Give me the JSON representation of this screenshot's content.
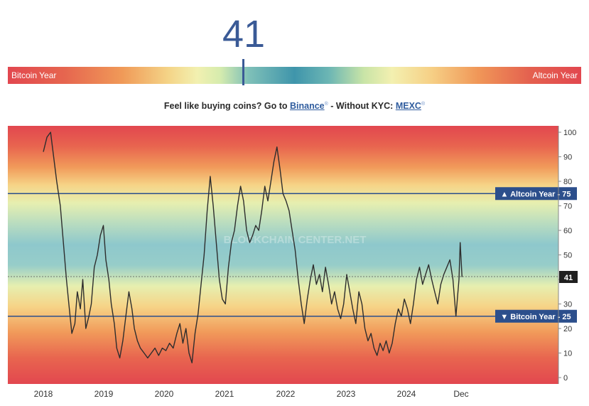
{
  "header": {
    "index_value": "41"
  },
  "gauge": {
    "left_label": "Bitcoin Year",
    "right_label": "Altcoin Year"
  },
  "promo": {
    "prefix": "Feel like buying coins? Go to ",
    "link1": "Binance",
    "middle": " - Without KYC: ",
    "link2": "MEXC",
    "sup": "®"
  },
  "watermark": "BLOCKCHAIN CENTER.NET",
  "chart_data": {
    "type": "line",
    "title": "",
    "xlabel": "",
    "ylabel": "",
    "ylim": [
      0,
      100
    ],
    "y_ticks": [
      0,
      10,
      20,
      30,
      40,
      50,
      60,
      70,
      80,
      90,
      100
    ],
    "x_ticks": [
      "2018",
      "2019",
      "2020",
      "2021",
      "2022",
      "2023",
      "2024",
      "Dec"
    ],
    "current_value": "41",
    "reference_lines": [
      {
        "label": "▲ Altcoin Year",
        "value": 75
      },
      {
        "label": "▼ Bitcoin Year",
        "value": 25
      }
    ],
    "series": [
      {
        "values": [
          [
            2018.0,
            92
          ],
          [
            2018.06,
            98
          ],
          [
            2018.12,
            100
          ],
          [
            2018.17,
            90
          ],
          [
            2018.22,
            80
          ],
          [
            2018.28,
            70
          ],
          [
            2018.33,
            55
          ],
          [
            2018.38,
            40
          ],
          [
            2018.42,
            30
          ],
          [
            2018.47,
            18
          ],
          [
            2018.52,
            22
          ],
          [
            2018.56,
            35
          ],
          [
            2018.61,
            28
          ],
          [
            2018.65,
            40
          ],
          [
            2018.7,
            20
          ],
          [
            2018.75,
            25
          ],
          [
            2018.79,
            30
          ],
          [
            2018.84,
            45
          ],
          [
            2018.89,
            50
          ],
          [
            2018.94,
            58
          ],
          [
            2018.99,
            62
          ],
          [
            2019.03,
            48
          ],
          [
            2019.08,
            40
          ],
          [
            2019.12,
            30
          ],
          [
            2019.17,
            22
          ],
          [
            2019.21,
            12
          ],
          [
            2019.26,
            8
          ],
          [
            2019.31,
            15
          ],
          [
            2019.36,
            25
          ],
          [
            2019.41,
            35
          ],
          [
            2019.46,
            28
          ],
          [
            2019.5,
            20
          ],
          [
            2019.55,
            15
          ],
          [
            2019.6,
            12
          ],
          [
            2019.66,
            10
          ],
          [
            2019.72,
            8
          ],
          [
            2019.78,
            10
          ],
          [
            2019.84,
            12
          ],
          [
            2019.9,
            9
          ],
          [
            2019.96,
            12
          ],
          [
            2020.02,
            11
          ],
          [
            2020.08,
            14
          ],
          [
            2020.14,
            12
          ],
          [
            2020.2,
            18
          ],
          [
            2020.25,
            22
          ],
          [
            2020.3,
            14
          ],
          [
            2020.35,
            20
          ],
          [
            2020.4,
            10
          ],
          [
            2020.45,
            6
          ],
          [
            2020.5,
            18
          ],
          [
            2020.55,
            26
          ],
          [
            2020.6,
            38
          ],
          [
            2020.65,
            50
          ],
          [
            2020.7,
            68
          ],
          [
            2020.75,
            82
          ],
          [
            2020.8,
            70
          ],
          [
            2020.85,
            55
          ],
          [
            2020.9,
            40
          ],
          [
            2020.95,
            32
          ],
          [
            2021.0,
            30
          ],
          [
            2021.05,
            45
          ],
          [
            2021.1,
            55
          ],
          [
            2021.15,
            60
          ],
          [
            2021.2,
            70
          ],
          [
            2021.25,
            78
          ],
          [
            2021.3,
            72
          ],
          [
            2021.35,
            60
          ],
          [
            2021.4,
            55
          ],
          [
            2021.45,
            58
          ],
          [
            2021.5,
            62
          ],
          [
            2021.55,
            60
          ],
          [
            2021.6,
            68
          ],
          [
            2021.65,
            78
          ],
          [
            2021.7,
            72
          ],
          [
            2021.75,
            80
          ],
          [
            2021.8,
            88
          ],
          [
            2021.85,
            94
          ],
          [
            2021.9,
            85
          ],
          [
            2021.95,
            75
          ],
          [
            2022.0,
            72
          ],
          [
            2022.05,
            68
          ],
          [
            2022.1,
            60
          ],
          [
            2022.15,
            52
          ],
          [
            2022.2,
            40
          ],
          [
            2022.25,
            30
          ],
          [
            2022.3,
            22
          ],
          [
            2022.35,
            32
          ],
          [
            2022.4,
            40
          ],
          [
            2022.45,
            46
          ],
          [
            2022.5,
            38
          ],
          [
            2022.55,
            42
          ],
          [
            2022.6,
            35
          ],
          [
            2022.65,
            45
          ],
          [
            2022.7,
            38
          ],
          [
            2022.75,
            30
          ],
          [
            2022.8,
            35
          ],
          [
            2022.85,
            28
          ],
          [
            2022.9,
            24
          ],
          [
            2022.95,
            30
          ],
          [
            2023.0,
            42
          ],
          [
            2023.05,
            35
          ],
          [
            2023.1,
            28
          ],
          [
            2023.15,
            22
          ],
          [
            2023.2,
            35
          ],
          [
            2023.25,
            30
          ],
          [
            2023.3,
            20
          ],
          [
            2023.35,
            15
          ],
          [
            2023.4,
            18
          ],
          [
            2023.45,
            12
          ],
          [
            2023.5,
            9
          ],
          [
            2023.55,
            14
          ],
          [
            2023.6,
            11
          ],
          [
            2023.65,
            15
          ],
          [
            2023.7,
            10
          ],
          [
            2023.75,
            14
          ],
          [
            2023.8,
            22
          ],
          [
            2023.85,
            28
          ],
          [
            2023.9,
            25
          ],
          [
            2023.95,
            32
          ],
          [
            2024.0,
            28
          ],
          [
            2024.05,
            22
          ],
          [
            2024.1,
            30
          ],
          [
            2024.15,
            40
          ],
          [
            2024.2,
            45
          ],
          [
            2024.25,
            38
          ],
          [
            2024.3,
            42
          ],
          [
            2024.35,
            46
          ],
          [
            2024.4,
            40
          ],
          [
            2024.45,
            35
          ],
          [
            2024.5,
            30
          ],
          [
            2024.55,
            38
          ],
          [
            2024.6,
            42
          ],
          [
            2024.65,
            45
          ],
          [
            2024.7,
            48
          ],
          [
            2024.75,
            40
          ],
          [
            2024.8,
            25
          ],
          [
            2024.85,
            40
          ],
          [
            2024.87,
            55
          ],
          [
            2024.9,
            41
          ]
        ]
      }
    ]
  }
}
